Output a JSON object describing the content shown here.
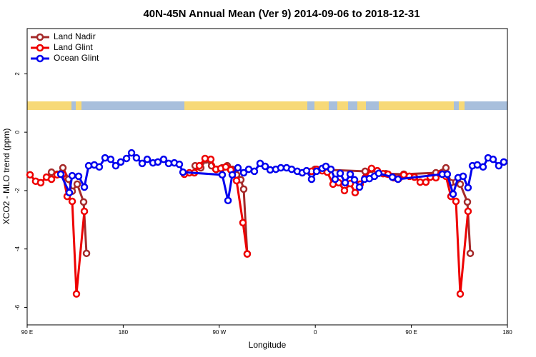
{
  "chart_data": {
    "type": "line",
    "title": "40N-45N Annual Mean (Ver 9)   2014-09-06 to 2018-12-31",
    "x_label": "Longitude",
    "y_label": "XCO2 - MLO trend (ppm)",
    "xlim": [
      90,
      540
    ],
    "xticks": [
      {
        "value": 90,
        "label": "90 E"
      },
      180,
      {
        "value": 270,
        "label": "90 W"
      },
      {
        "value": 360,
        "label": "0"
      },
      {
        "value": 450,
        "label": "90 E"
      },
      {
        "value": 540,
        "label": "180"
      }
    ],
    "ylim": [
      -6.6,
      3.55
    ],
    "yticks": [
      -6,
      -4,
      -2,
      0,
      2
    ],
    "legend": "top-left",
    "series": [
      {
        "name": "Land Nadir",
        "color": "#a52a2a",
        "x": [
          112.8,
          118.1,
          123.5,
          128.8,
          132.2,
          136.9,
          142.9,
          145.6,
          null,
          247.4,
          252.7,
          257.4,
          262.8,
          267.4,
          272.8,
          277.5,
          282.2,
          286.2,
          290.2,
          292.9,
          296.2,
          null,
          359.8,
          406.7,
          412.7,
          426.1,
          442.9,
          473.0,
          482.4,
          487.1,
          491.8,
          495.8,
          502.5,
          505.2
        ],
        "values": [
          -1.37,
          -1.44,
          -1.22,
          -1.61,
          -2.02,
          -1.78,
          -2.39,
          -4.15,
          null,
          -1.15,
          -1.22,
          -0.95,
          -1.15,
          -1.27,
          -1.22,
          -1.15,
          -1.27,
          -1.46,
          -1.63,
          -1.95,
          -4.17,
          null,
          -1.27,
          -1.34,
          -1.27,
          -1.42,
          -1.44,
          -1.39,
          -1.22,
          -1.73,
          -1.71,
          -1.78,
          -2.39,
          -4.15
        ]
      },
      {
        "name": "Land Glint",
        "color": "#ee0000",
        "x": [
          92.7,
          98.0,
          102.7,
          108.1,
          112.8,
          118.1,
          123.5,
          127.5,
          132.2,
          136.2,
          143.6,
          null,
          237.3,
          242.0,
          246.7,
          251.4,
          256.7,
          262.1,
          266.8,
          271.5,
          276.1,
          280.8,
          286.2,
          292.2,
          296.2,
          null,
          356.5,
          361.2,
          366.5,
          371.2,
          376.6,
          381.9,
          387.3,
          392.7,
          397.3,
          402.0,
          406.7,
          412.7,
          418.1,
          423.5,
          428.1,
          433.5,
          438.2,
          442.9,
          448.2,
          452.9,
          458.3,
          463.6,
          467.7,
          473.0,
          477.7,
          482.4,
          487.1,
          491.8,
          495.8,
          503.1
        ],
        "values": [
          -1.46,
          -1.68,
          -1.73,
          -1.54,
          -1.61,
          -1.46,
          -1.44,
          -2.2,
          -2.37,
          -5.54,
          -2.71,
          null,
          -1.44,
          -1.39,
          -1.39,
          -1.15,
          -0.9,
          -0.93,
          -1.27,
          -1.24,
          -1.19,
          -1.29,
          -1.66,
          -3.1,
          -4.17,
          null,
          -1.34,
          -1.27,
          -1.32,
          -1.37,
          -1.78,
          -1.73,
          -2.0,
          -1.76,
          -2.07,
          -1.78,
          -1.56,
          -1.24,
          -1.32,
          -1.42,
          -1.44,
          -1.56,
          -1.59,
          -1.46,
          -1.51,
          -1.54,
          -1.71,
          -1.71,
          -1.54,
          -1.56,
          -1.42,
          -1.51,
          -2.2,
          -2.37,
          -5.54,
          -2.71
        ]
      },
      {
        "name": "Ocean Glint",
        "color": "#0000ee",
        "x": [
          121.5,
          129.5,
          132.2,
          138.2,
          143.6,
          147.6,
          152.9,
          157.6,
          163.0,
          168.3,
          173.0,
          177.7,
          183.1,
          187.8,
          192.4,
          197.8,
          202.5,
          207.9,
          212.5,
          217.9,
          222.6,
          227.9,
          232.6,
          236.0,
          272.8,
          278.2,
          282.2,
          287.5,
          292.9,
          297.6,
          302.9,
          308.3,
          313.0,
          317.7,
          323.0,
          327.7,
          333.1,
          337.8,
          343.1,
          347.8,
          351.8,
          356.5,
          361.2,
          366.5,
          369.9,
          374.6,
          378.6,
          383.3,
          388.0,
          392.7,
          396.7,
          401.4,
          406.1,
          410.7,
          415.4,
          419.4,
          432.2,
          437.5,
          479.0,
          483.7,
          489.1,
          493.8,
          498.5,
          503.1,
          507.2,
          511.8,
          517.2,
          521.9,
          526.6,
          531.9,
          536.6
        ],
        "values": [
          -1.44,
          -2.07,
          -1.49,
          -1.51,
          -1.88,
          -1.15,
          -1.12,
          -1.19,
          -0.88,
          -0.93,
          -1.15,
          -1.02,
          -0.9,
          -0.71,
          -0.88,
          -1.07,
          -0.93,
          -1.05,
          -1.02,
          -0.93,
          -1.07,
          -1.05,
          -1.1,
          -1.37,
          -1.46,
          -2.34,
          -1.46,
          -1.22,
          -1.39,
          -1.27,
          -1.34,
          -1.07,
          -1.17,
          -1.29,
          -1.27,
          -1.22,
          -1.22,
          -1.27,
          -1.34,
          -1.39,
          -1.32,
          -1.61,
          -1.34,
          -1.24,
          -1.17,
          -1.27,
          -1.61,
          -1.41,
          -1.73,
          -1.44,
          -1.63,
          -1.88,
          -1.61,
          -1.59,
          -1.51,
          -1.41,
          -1.54,
          -1.61,
          -1.44,
          -1.44,
          -2.12,
          -1.56,
          -1.51,
          -1.9,
          -1.15,
          -1.12,
          -1.19,
          -0.88,
          -0.93,
          -1.15,
          -1.02
        ]
      }
    ]
  }
}
